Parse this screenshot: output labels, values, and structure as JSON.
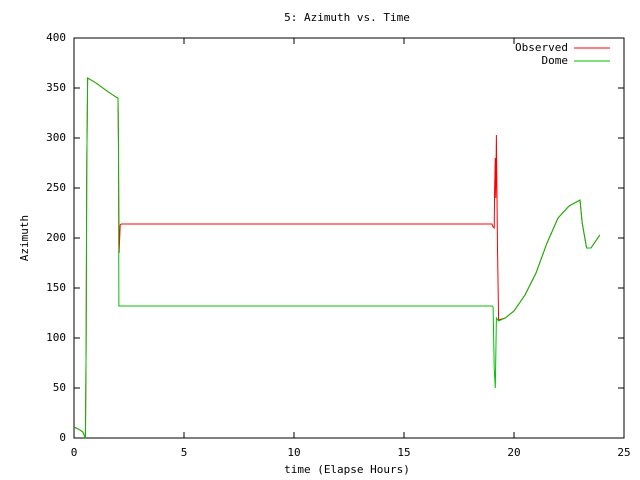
{
  "chart_data": {
    "type": "line",
    "title": "5: Azimuth vs. Time",
    "x_label": "time (Elapse Hours)",
    "y_label": "Azimuth",
    "xlim": [
      0,
      25
    ],
    "ylim": [
      0,
      400
    ],
    "xticks": [
      0,
      5,
      10,
      15,
      20,
      25
    ],
    "yticks": [
      0,
      50,
      100,
      150,
      200,
      250,
      300,
      350,
      400
    ],
    "grid": false,
    "legend": "top-right",
    "series": [
      {
        "name": "Observed",
        "color": "#ff0000",
        "x": [
          0,
          0.2,
          0.4,
          0.5,
          0.52,
          0.55,
          0.58,
          0.62,
          1.0,
          1.5,
          1.9,
          2.0,
          2.02,
          2.05,
          2.1,
          2.15,
          19.0,
          19.05,
          19.1,
          19.12,
          19.15,
          19.17,
          19.2,
          19.25,
          19.3,
          19.6,
          20.0,
          20.5,
          21.0,
          21.5,
          22.0,
          22.5,
          23.0,
          23.1,
          23.3,
          23.5,
          23.9
        ],
        "values": [
          11,
          9,
          6,
          1,
          0,
          90,
          270,
          360,
          355,
          347,
          341,
          340,
          295,
          185,
          213,
          214,
          214,
          211,
          210,
          250,
          280,
          240,
          303,
          190,
          118,
          120,
          127,
          143,
          165,
          195,
          220,
          232,
          238,
          215,
          190,
          190,
          203
        ]
      },
      {
        "name": "Dome",
        "color": "#00c000",
        "x": [
          0,
          0.2,
          0.4,
          0.5,
          0.52,
          0.55,
          0.58,
          0.62,
          1.0,
          1.5,
          1.9,
          2.0,
          2.02,
          2.04,
          19.0,
          19.05,
          19.1,
          19.15,
          19.2,
          19.3,
          19.6,
          20.0,
          20.5,
          21.0,
          21.5,
          22.0,
          22.5,
          23.0,
          23.1,
          23.3,
          23.5,
          23.9
        ],
        "values": [
          11,
          9,
          6,
          1,
          0,
          90,
          270,
          360,
          355,
          347,
          341,
          340,
          300,
          132,
          132,
          131,
          70,
          50,
          120,
          117,
          120,
          127,
          143,
          165,
          195,
          220,
          232,
          238,
          215,
          190,
          190,
          203
        ]
      }
    ]
  }
}
